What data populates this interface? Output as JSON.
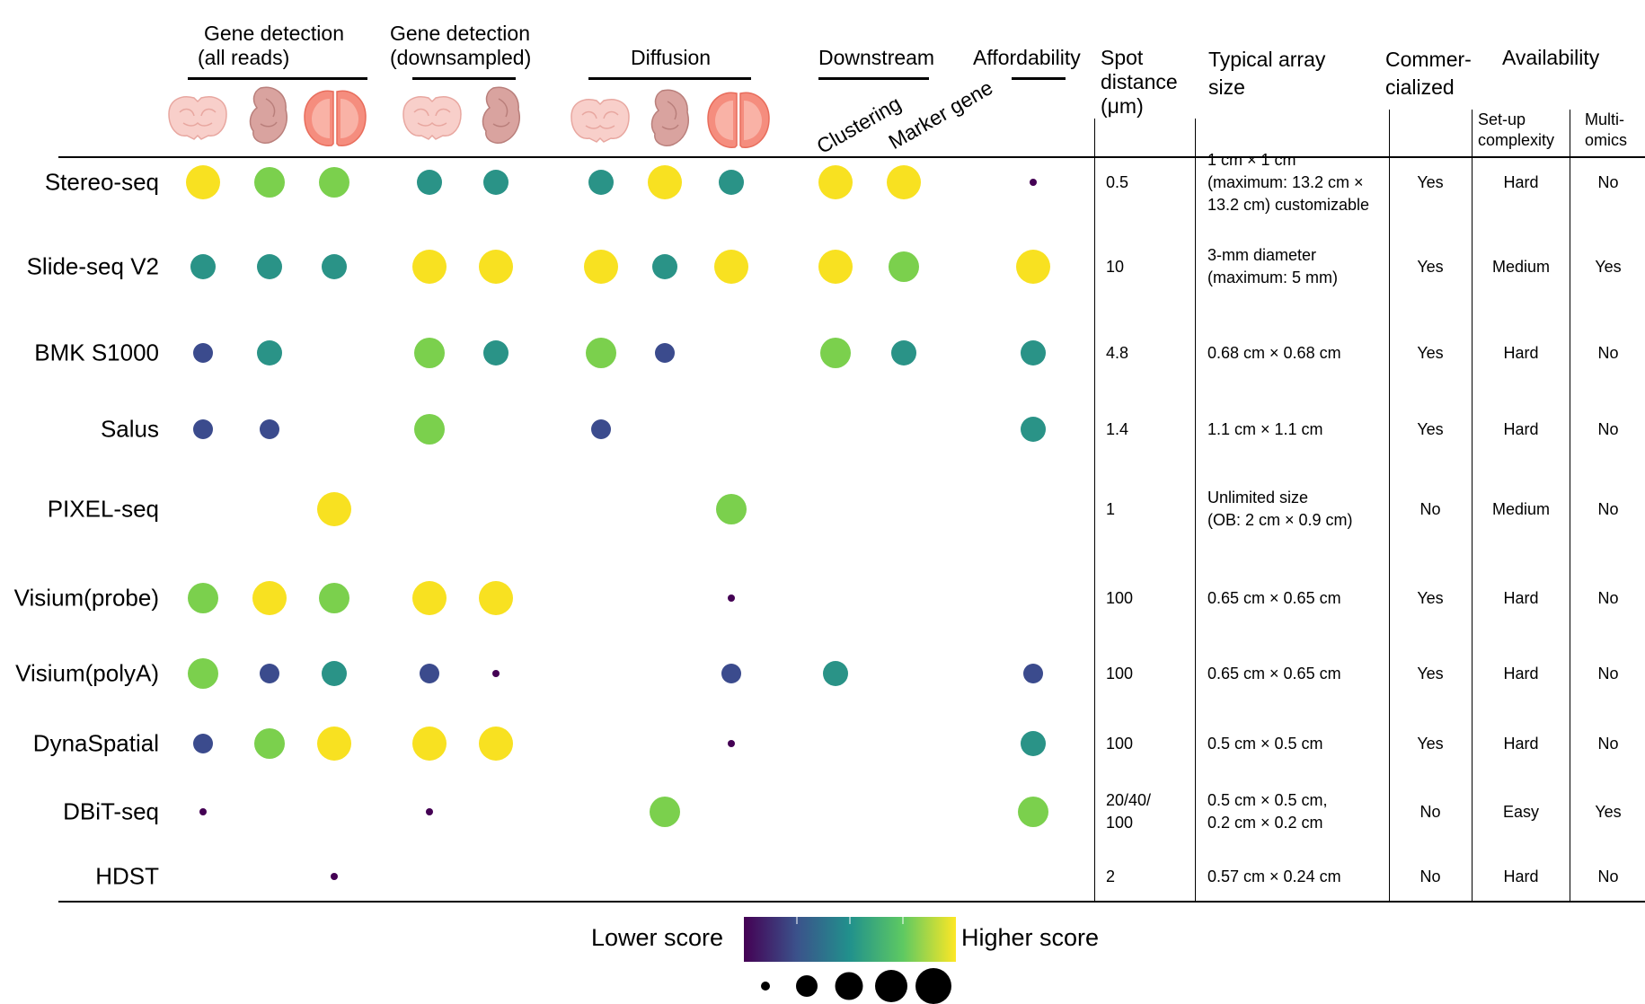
{
  "headers": {
    "gd_all": [
      "Gene detection",
      "(all reads)"
    ],
    "gd_down": [
      "Gene detection",
      "(downsampled)"
    ],
    "diffusion": "Diffusion",
    "downstream": "Downstream",
    "clustering": "Clustering",
    "marker_gene": "Marker gene",
    "affordability": "Affordability",
    "spot_distance": [
      "Spot",
      "distance",
      "(μm)"
    ],
    "array_size": [
      "Typical array",
      "size"
    ],
    "commercialized": [
      "Commer-",
      "cialized"
    ],
    "availability": "Availability",
    "setup": [
      "Set-up",
      "complexity"
    ],
    "multiomics": [
      "Multi-",
      "omics"
    ]
  },
  "tissue_icons": [
    "brain-icon",
    "embryo-icon",
    "olfactory-bulb-icon"
  ],
  "colors": {
    "c1": "#440154",
    "c2": "#3b4b8d",
    "c3": "#2a9387",
    "c4": "#7bd04d",
    "c5": "#f8e121"
  },
  "score_columns": [
    "gd_all_brain",
    "gd_all_embryo",
    "gd_all_ob",
    "gd_down_brain",
    "gd_down_embryo",
    "diff_brain",
    "diff_embryo",
    "diff_ob",
    "clustering",
    "marker_gene",
    "affordability"
  ],
  "rows": [
    {
      "name": "Stereo-seq",
      "scores": [
        5,
        4,
        4,
        3,
        3,
        3,
        5,
        3,
        5,
        5,
        1
      ],
      "spot": [
        "0.5"
      ],
      "array": [
        "1 cm × 1 cm",
        "(maximum: 13.2 cm ×",
        "13.2 cm) customizable"
      ],
      "commercialized": "Yes",
      "setup": "Hard",
      "multiomics": "No"
    },
    {
      "name": "Slide-seq V2",
      "scores": [
        3,
        3,
        3,
        5,
        5,
        5,
        3,
        5,
        5,
        4,
        5
      ],
      "spot": [
        "10"
      ],
      "array": [
        "3-mm diameter",
        "(maximum: 5 mm)"
      ],
      "commercialized": "Yes",
      "setup": "Medium",
      "multiomics": "Yes"
    },
    {
      "name": "BMK S1000",
      "scores": [
        2,
        3,
        0,
        4,
        3,
        4,
        2,
        0,
        4,
        3,
        3
      ],
      "spot": [
        "4.8"
      ],
      "array": [
        "0.68 cm × 0.68 cm"
      ],
      "commercialized": "Yes",
      "setup": "Hard",
      "multiomics": "No"
    },
    {
      "name": "Salus",
      "scores": [
        2,
        2,
        0,
        4,
        0,
        2,
        0,
        0,
        0,
        0,
        3
      ],
      "spot": [
        "1.4"
      ],
      "array": [
        "1.1 cm × 1.1 cm"
      ],
      "commercialized": "Yes",
      "setup": "Hard",
      "multiomics": "No"
    },
    {
      "name": "PIXEL-seq",
      "scores": [
        0,
        0,
        5,
        0,
        0,
        0,
        0,
        4,
        0,
        0,
        0
      ],
      "spot": [
        "1"
      ],
      "array": [
        "Unlimited size",
        "(OB: 2 cm × 0.9 cm)"
      ],
      "commercialized": "No",
      "setup": "Medium",
      "multiomics": "No"
    },
    {
      "name": "Visium(probe)",
      "scores": [
        4,
        5,
        4,
        5,
        5,
        0,
        0,
        1,
        0,
        0,
        0
      ],
      "spot": [
        "100"
      ],
      "array": [
        "0.65 cm × 0.65 cm"
      ],
      "commercialized": "Yes",
      "setup": "Hard",
      "multiomics": "No"
    },
    {
      "name": "Visium(polyA)",
      "scores": [
        4,
        2,
        3,
        2,
        1,
        0,
        0,
        2,
        3,
        0,
        2
      ],
      "spot": [
        "100"
      ],
      "array": [
        "0.65 cm × 0.65 cm"
      ],
      "commercialized": "Yes",
      "setup": "Hard",
      "multiomics": "No"
    },
    {
      "name": "DynaSpatial",
      "scores": [
        2,
        4,
        5,
        5,
        5,
        0,
        0,
        1,
        0,
        0,
        3
      ],
      "spot": [
        "100"
      ],
      "array": [
        "0.5 cm × 0.5 cm"
      ],
      "commercialized": "Yes",
      "setup": "Hard",
      "multiomics": "No"
    },
    {
      "name": "DBiT-seq",
      "scores": [
        1,
        0,
        0,
        1,
        0,
        0,
        4,
        0,
        0,
        0,
        4
      ],
      "spot": [
        "20/40/",
        "100"
      ],
      "array": [
        "0.5 cm × 0.5 cm,",
        "0.2 cm × 0.2 cm"
      ],
      "commercialized": "No",
      "setup": "Easy",
      "multiomics": "Yes"
    },
    {
      "name": "HDST",
      "scores": [
        0,
        0,
        1,
        0,
        0,
        0,
        0,
        0,
        0,
        0,
        0
      ],
      "spot": [
        "2"
      ],
      "array": [
        "0.57 cm × 0.24 cm"
      ],
      "commercialized": "No",
      "setup": "Hard",
      "multiomics": "No"
    }
  ],
  "legend": {
    "lower": "Lower score",
    "higher": "Higher score",
    "size_levels": [
      1,
      2,
      3,
      4,
      5
    ]
  }
}
